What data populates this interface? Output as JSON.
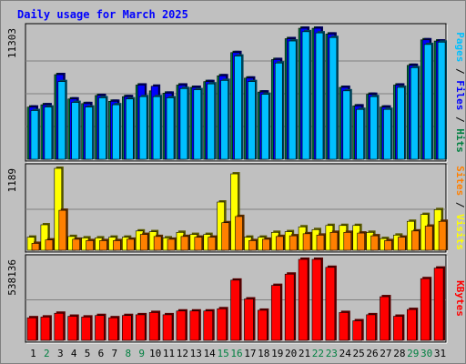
{
  "chart_data": {
    "type": "bar",
    "title": "Daily usage for March 2025",
    "categories": [
      "1",
      "2",
      "3",
      "4",
      "5",
      "6",
      "7",
      "8",
      "9",
      "10",
      "11",
      "12",
      "13",
      "14",
      "15",
      "16",
      "17",
      "18",
      "19",
      "20",
      "21",
      "22",
      "23",
      "24",
      "25",
      "26",
      "27",
      "28",
      "29",
      "30",
      "31"
    ],
    "weekend_days": [
      "2",
      "8",
      "9",
      "15",
      "16",
      "22",
      "23",
      "29",
      "30"
    ],
    "panels": [
      {
        "name": "hits_files_pages",
        "max_label": "11303",
        "ylim": [
          0,
          11303
        ],
        "right_labels": [
          {
            "text": "Hits",
            "color": "#008040"
          },
          {
            "text": "Files",
            "color": "#0000ff"
          },
          {
            "text": "Pages",
            "color": "#00c0ff"
          }
        ],
        "series": [
          {
            "name": "Hits",
            "color": "#008040",
            "values": [
              4500,
              4700,
              7300,
              5200,
              4800,
              5500,
              5000,
              5400,
              6400,
              5900,
              5700,
              6400,
              6200,
              6700,
              7200,
              9200,
              7000,
              5800,
              8600,
              10400,
              11300,
              11300,
              10800,
              6200,
              4600,
              5600,
              4500,
              6400,
              8100,
              10300,
              10200
            ]
          },
          {
            "name": "Files",
            "color": "#0000ff",
            "values": [
              4500,
              4700,
              7300,
              5200,
              4800,
              5500,
              5000,
              5400,
              6400,
              6300,
              5700,
              6400,
              6200,
              6700,
              7200,
              9200,
              7000,
              5800,
              8600,
              10400,
              11300,
              11300,
              10800,
              6200,
              4600,
              5600,
              4500,
              6400,
              8100,
              10300,
              10200
            ]
          },
          {
            "name": "Pages",
            "color": "#00c0ff",
            "values": [
              4200,
              4500,
              6700,
              4900,
              4500,
              5300,
              4700,
              5200,
              5400,
              5400,
              5300,
              6100,
              6000,
              6500,
              6800,
              8900,
              6700,
              5600,
              8300,
              10200,
              11000,
              10900,
              10500,
              5900,
              4300,
              5400,
              4300,
              6200,
              7900,
              9900,
              10100
            ]
          }
        ]
      },
      {
        "name": "visits_sites",
        "max_label": "1189",
        "ylim": [
          0,
          1189
        ],
        "right_labels": [
          {
            "text": "Visits",
            "color": "#ffff00"
          },
          {
            "text": "Sites",
            "color": "#ff8000"
          }
        ],
        "series": [
          {
            "name": "Visits",
            "color": "#ffff00",
            "values": [
              190,
              370,
              1189,
              200,
              180,
              180,
              190,
              190,
              280,
              270,
              180,
              260,
              230,
              230,
              700,
              1109,
              190,
              190,
              260,
              270,
              340,
              300,
              360,
              360,
              360,
              260,
              170,
              220,
              420,
              520,
              590
            ]
          },
          {
            "name": "Sites",
            "color": "#ff8000",
            "values": [
              100,
              150,
              580,
              160,
              140,
              140,
              140,
              160,
              230,
              200,
              160,
              200,
              190,
              190,
              400,
              490,
              140,
              160,
              200,
              210,
              240,
              220,
              260,
              260,
              250,
              210,
              140,
              190,
              280,
              350,
              420
            ]
          }
        ]
      },
      {
        "name": "kbytes",
        "max_label": "538136",
        "ylim": [
          0,
          538136
        ],
        "right_labels": [
          {
            "text": "KBytes",
            "color": "#ff0000"
          }
        ],
        "series": [
          {
            "name": "KBytes",
            "color": "#ff0000",
            "values": [
              150000,
              155000,
              180000,
              160000,
              155000,
              165000,
              150000,
              165000,
              170000,
              185000,
              170000,
              195000,
              195000,
              195000,
              210000,
              400000,
              275000,
              200000,
              365000,
              440000,
              538136,
              538136,
              485000,
              185000,
              130000,
              170000,
              290000,
              160000,
              205000,
              410000,
              480000
            ]
          }
        ]
      }
    ]
  }
}
